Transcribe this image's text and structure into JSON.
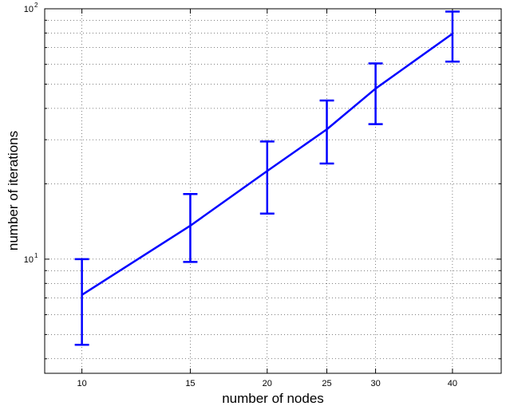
{
  "chart_data": {
    "type": "line",
    "title": "",
    "xlabel": "number of nodes",
    "ylabel": "number of iterations",
    "xscale": "log",
    "yscale": "log",
    "xlim": [
      8.7,
      48
    ],
    "ylim": [
      3.5,
      100
    ],
    "grid": true,
    "x_tick_labels": [
      "10",
      "15",
      "20",
      "25",
      "30",
      "40"
    ],
    "y_tick_labels": [
      {
        "base": "10",
        "exp": "1"
      },
      {
        "base": "10",
        "exp": "2"
      }
    ],
    "x_ticks": [
      10,
      15,
      20,
      25,
      30,
      40
    ],
    "y_ticks": [
      10,
      100
    ],
    "series": [
      {
        "color": "#0000ff",
        "x": [
          10,
          15,
          20,
          25,
          30,
          40
        ],
        "y": [
          7.2,
          13.6,
          22.5,
          33.0,
          48.0,
          79.5
        ],
        "err_low": [
          4.55,
          9.75,
          15.2,
          24.1,
          34.6,
          61.5
        ],
        "err_high": [
          10.0,
          18.2,
          29.5,
          43.0,
          60.5,
          97.5
        ]
      }
    ]
  }
}
